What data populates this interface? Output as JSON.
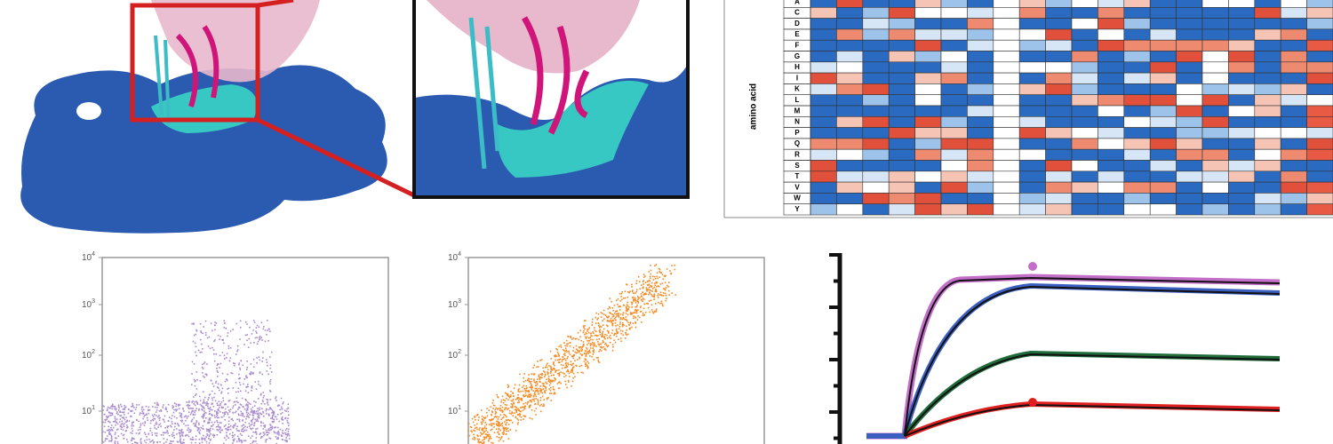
{
  "heatmap": {
    "axis_label": "amino acid",
    "rows": [
      "A",
      "C",
      "D",
      "E",
      "F",
      "G",
      "H",
      "I",
      "K",
      "L",
      "M",
      "N",
      "P",
      "Q",
      "R",
      "S",
      "T",
      "V",
      "W",
      "Y"
    ]
  },
  "flow_plots": [
    {
      "yticks": [
        {
          "base": "10",
          "exp": "4"
        },
        {
          "base": "10",
          "exp": "3"
        },
        {
          "base": "10",
          "exp": "2"
        },
        {
          "base": "10",
          "exp": "1"
        }
      ]
    },
    {
      "yticks": [
        {
          "base": "10",
          "exp": "4"
        },
        {
          "base": "10",
          "exp": "3"
        },
        {
          "base": "10",
          "exp": "2"
        },
        {
          "base": "10",
          "exp": "1"
        }
      ]
    }
  ]
}
